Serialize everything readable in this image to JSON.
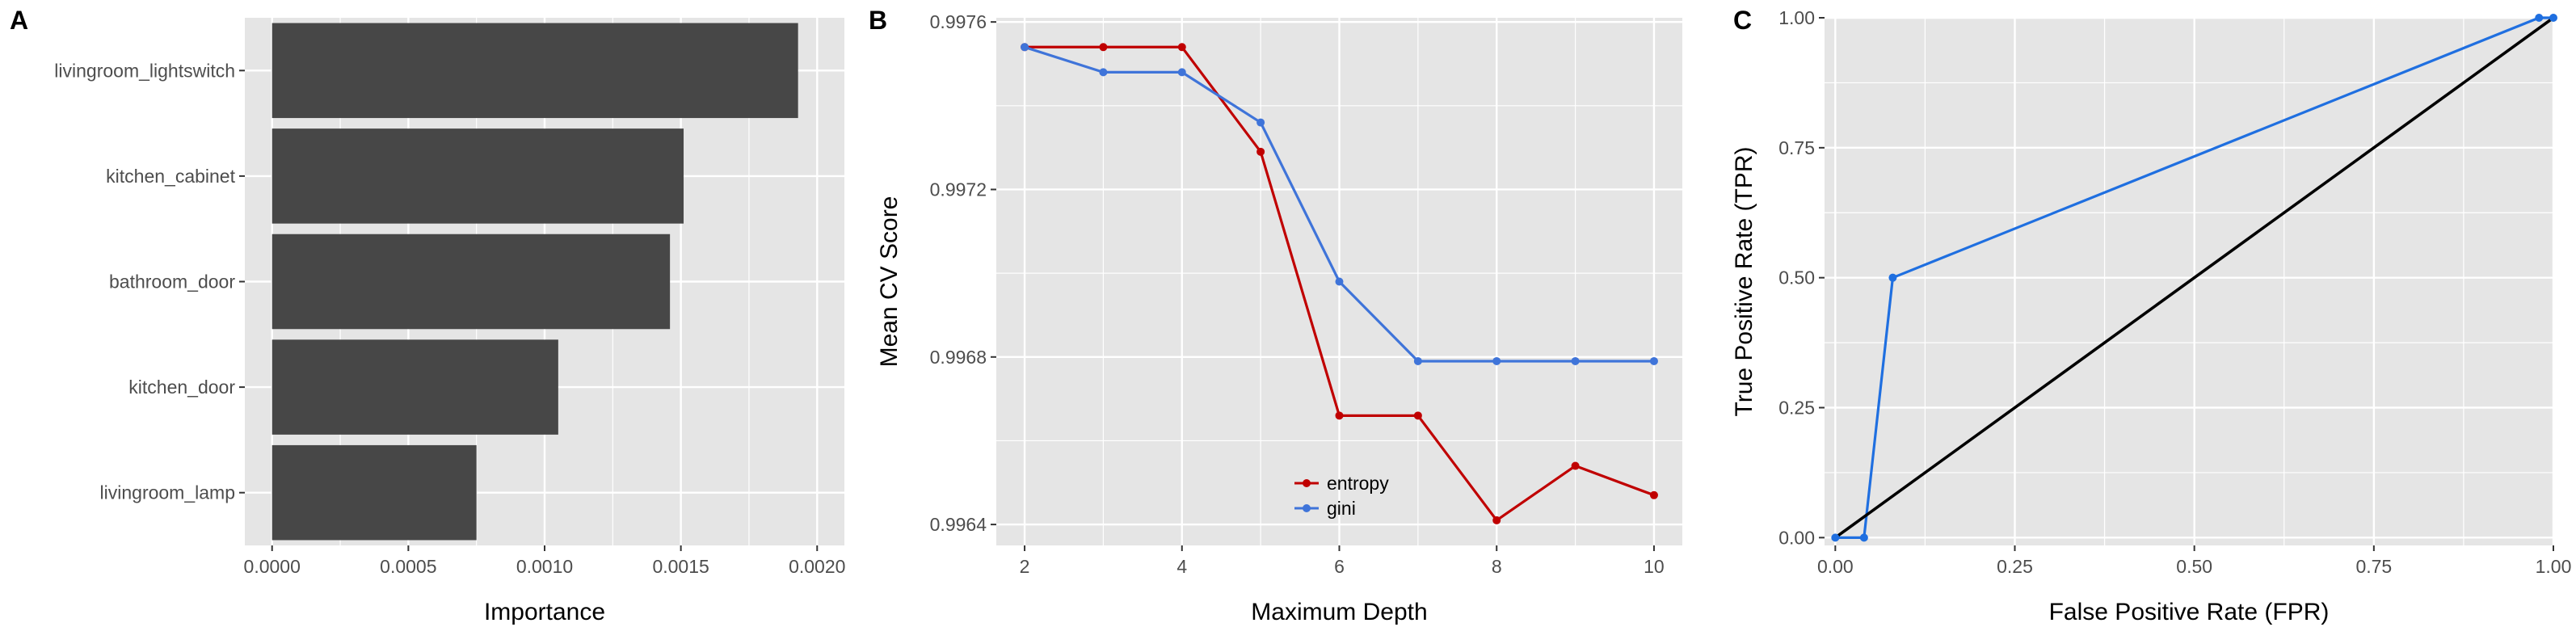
{
  "panels": {
    "a": {
      "tag": "A"
    },
    "b": {
      "tag": "B"
    },
    "c": {
      "tag": "C"
    }
  },
  "colors": {
    "panel_bg": "#e5e5e5",
    "grid": "#ffffff",
    "bar": "#474747",
    "tick_text": "#4d4d4d",
    "entropy": "#c00000",
    "gini": "#3f74d9",
    "roc": "#1f6fe0",
    "diagonal": "#000000"
  },
  "chart_data": [
    {
      "type": "bar",
      "orientation": "horizontal",
      "categories": [
        "livingroom_lightswitch",
        "kitchen_cabinet",
        "bathroom_door",
        "kitchen_door",
        "livingroom_lamp"
      ],
      "values": [
        0.00193,
        0.00151,
        0.00146,
        0.00105,
        0.00075
      ],
      "xlabel": "Importance",
      "ylabel": "",
      "xlim": [
        -0.0001,
        0.0021
      ],
      "xticks": [
        0,
        0.0005,
        0.001,
        0.0015,
        0.002
      ],
      "xtick_labels": [
        "0.0000",
        "0.0005",
        "0.0010",
        "0.0015",
        "0.0020"
      ],
      "grid": true
    },
    {
      "type": "line",
      "x": [
        2,
        3,
        4,
        5,
        6,
        7,
        8,
        9,
        10
      ],
      "series": [
        {
          "name": "entropy",
          "values": [
            0.99754,
            0.99754,
            0.99754,
            0.99729,
            0.99666,
            0.99666,
            0.99641,
            0.99654,
            0.99647
          ]
        },
        {
          "name": "gini",
          "values": [
            0.99754,
            0.99748,
            0.99748,
            0.99736,
            0.99698,
            0.99679,
            0.99679,
            0.99679,
            0.99679
          ]
        }
      ],
      "xlabel": "Maximum Depth",
      "ylabel": "Mean CV Score",
      "xlim": [
        1.64,
        10.36
      ],
      "ylim": [
        0.99635,
        0.99761
      ],
      "xticks": [
        2,
        4,
        6,
        8,
        10
      ],
      "yticks": [
        0.9964,
        0.9968,
        0.9972,
        0.9976
      ],
      "ytick_labels": [
        "0.9964",
        "0.9968",
        "0.9972",
        "0.9976"
      ],
      "legend": "bottom-center",
      "grid": true
    },
    {
      "type": "line",
      "series": [
        {
          "name": "roc",
          "x": [
            0.0,
            0.04,
            0.08,
            0.98,
            1.0
          ],
          "values": [
            0.0,
            0.0,
            0.5,
            1.0,
            1.0
          ]
        },
        {
          "name": "diagonal",
          "x": [
            0.0,
            1.0
          ],
          "values": [
            0.0,
            1.0
          ]
        }
      ],
      "xlabel": "False Positive Rate (FPR)",
      "ylabel": "True Positive Rate (TPR)",
      "xlim": [
        -0.015,
        1.0
      ],
      "ylim": [
        -0.015,
        1.0
      ],
      "xticks": [
        0,
        0.25,
        0.5,
        0.75,
        1.0
      ],
      "xtick_labels": [
        "0.00",
        "0.25",
        "0.50",
        "0.75",
        "1.00"
      ],
      "yticks": [
        0,
        0.25,
        0.5,
        0.75,
        1.0
      ],
      "ytick_labels": [
        "0.00",
        "0.25",
        "0.50",
        "0.75",
        "1.00"
      ],
      "grid": true
    }
  ]
}
